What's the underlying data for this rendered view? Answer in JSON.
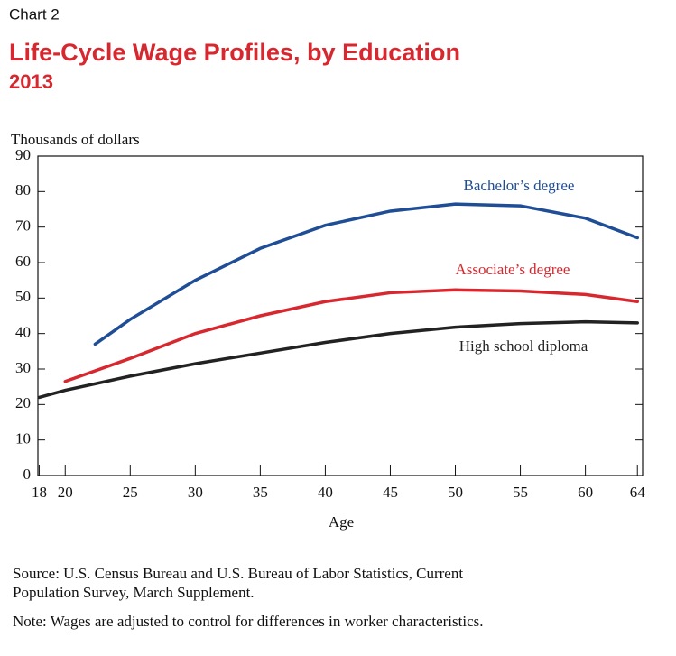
{
  "chart_data": {
    "type": "line",
    "chart_label": "Chart 2",
    "title": "Life-Cycle Wage Profiles, by Education",
    "subtitle": "2013",
    "y_label": "Thousands of dollars",
    "x_label": "Age",
    "xlim": [
      17.9,
      64.4
    ],
    "xticks": [
      18,
      20,
      25,
      30,
      35,
      40,
      45,
      50,
      55,
      60,
      64
    ],
    "ylim": [
      0,
      90
    ],
    "yticks": [
      0,
      10,
      20,
      30,
      40,
      50,
      60,
      70,
      80,
      90
    ],
    "series": [
      {
        "name": "Bachelor’s degree",
        "color": "#1f4e96",
        "x": [
          22.3,
          25,
          30,
          35,
          40,
          45,
          50,
          55,
          60,
          64
        ],
        "values": [
          37,
          44,
          55,
          64,
          70.5,
          74.5,
          76.5,
          76,
          72.5,
          67
        ]
      },
      {
        "name": "Associate’s degree",
        "color": "#d7282f",
        "x": [
          20,
          25,
          30,
          35,
          40,
          45,
          50,
          55,
          60,
          64
        ],
        "values": [
          26.5,
          33,
          40,
          45,
          49,
          51.5,
          52.3,
          52,
          51,
          49
        ]
      },
      {
        "name": "High school diploma",
        "color": "#222222",
        "x": [
          18,
          20,
          25,
          30,
          35,
          40,
          45,
          50,
          55,
          60,
          64
        ],
        "values": [
          22,
          24,
          28,
          31.5,
          34.5,
          37.5,
          40,
          41.8,
          42.8,
          43.3,
          43
        ]
      }
    ],
    "source": "Source: U.S. Census Bureau and U.S. Bureau of Labor Statistics, Current",
    "source_cont": "Population Survey, March Supplement.",
    "note": "Note: Wages are adjusted to control for differences in worker characteristics."
  }
}
